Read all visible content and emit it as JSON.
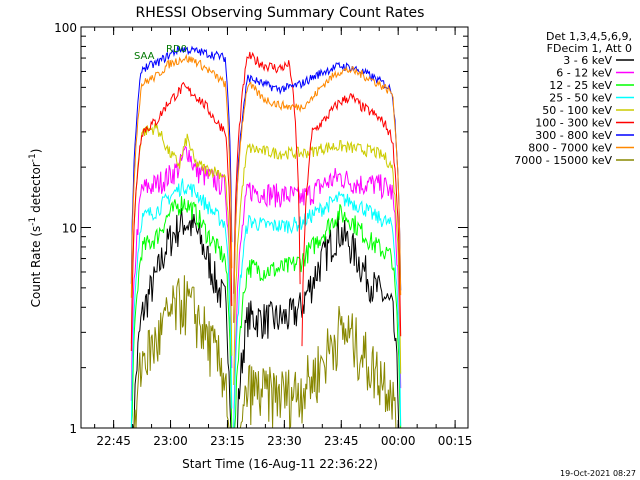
{
  "chart_data": {
    "type": "line",
    "title": "RHESSI Observing Summary Count Rates",
    "xlabel": "Start Time (16-Aug-11 22:36:22)",
    "ylabel_prefix": "Count Rate (s",
    "ylabel_sup": "-1",
    "ylabel_mid": " detector",
    "ylabel_suffix": ")",
    "footer": "19-Oct-2021 08:27",
    "y_scale": "log",
    "ylim": [
      1,
      100
    ],
    "y_ticks": [
      {
        "value": 1,
        "label": "1"
      },
      {
        "value": 10,
        "label": "10"
      },
      {
        "value": 100,
        "label": "100"
      }
    ],
    "x_units": "minutes after 22:36:22",
    "xlim": [
      0,
      102
    ],
    "x_ticks": [
      {
        "value": 8.6,
        "label": "22:45"
      },
      {
        "value": 23.6,
        "label": "23:00"
      },
      {
        "value": 38.6,
        "label": "23:15"
      },
      {
        "value": 53.6,
        "label": "23:30"
      },
      {
        "value": 68.6,
        "label": "23:45"
      },
      {
        "value": 83.6,
        "label": "00:00"
      },
      {
        "value": 98.6,
        "label": "00:15"
      }
    ],
    "legend_header": [
      "Det 1,3,4,5,6,9,",
      "FDecim 1, Att 0"
    ],
    "legend_placement": "right",
    "annotations": [
      {
        "text": "RD0",
        "color": "#007700"
      },
      {
        "text": "SAA",
        "color": "#007700"
      }
    ],
    "series": [
      {
        "name": "3 - 6 keV",
        "color": "#000000",
        "x": [
          13,
          16,
          20,
          23,
          27,
          30,
          33,
          36,
          38,
          40,
          44,
          48,
          52,
          55,
          58,
          61,
          64,
          68,
          71,
          74,
          77,
          80,
          82,
          84.5
        ],
        "y": [
          0,
          3.6,
          5.8,
          8.5,
          10.8,
          10,
          7.3,
          5,
          4.3,
          0,
          3.6,
          3.5,
          3.5,
          3.6,
          4,
          5.4,
          7.2,
          9.7,
          8.2,
          6.4,
          5.1,
          4.5,
          3.9,
          0
        ]
      },
      {
        "name": "6 - 12 keV",
        "color": "#ff00ff",
        "x": [
          13,
          16,
          20,
          23,
          26,
          28,
          30,
          33,
          36,
          38,
          40,
          44,
          48,
          52,
          55,
          58,
          61,
          64,
          68,
          71,
          74,
          77,
          80,
          82,
          84.5
        ],
        "y": [
          0,
          15.5,
          16.5,
          18,
          20,
          25,
          19.5,
          18,
          17,
          16,
          0,
          15.5,
          15,
          14.5,
          14.5,
          14,
          15,
          16.5,
          18,
          17,
          16.5,
          16.5,
          16,
          15,
          0
        ]
      },
      {
        "name": "12 - 25 keV",
        "color": "#00ff00",
        "x": [
          13,
          16,
          20,
          23,
          27,
          30,
          33,
          36,
          38,
          40,
          44,
          48,
          52,
          55,
          58,
          61,
          64,
          68,
          71,
          74,
          77,
          80,
          82,
          84.5
        ],
        "y": [
          0,
          7.8,
          9,
          11.5,
          13.5,
          12,
          9.5,
          7.8,
          7,
          0,
          6.4,
          6.1,
          6.2,
          6.4,
          6.8,
          8,
          9.5,
          11.8,
          11,
          9.5,
          8.3,
          7.6,
          7.1,
          0
        ]
      },
      {
        "name": "25 - 50 keV",
        "color": "#00ffff",
        "x": [
          13,
          16,
          20,
          23,
          27,
          30,
          33,
          36,
          38,
          40,
          44,
          48,
          52,
          55,
          58,
          61,
          64,
          68,
          71,
          74,
          77,
          80,
          82,
          84.5
        ],
        "y": [
          0,
          11.2,
          12.2,
          14,
          16.3,
          15.2,
          13,
          11.3,
          10.5,
          0,
          10.8,
          10.3,
          10.2,
          10.3,
          10.5,
          11.6,
          12.6,
          14,
          13.5,
          12.7,
          11.5,
          10.8,
          10.2,
          0
        ]
      },
      {
        "name": "50 - 100 keV",
        "color": "#cccc00",
        "x": [
          13,
          16,
          20,
          23,
          26,
          28,
          30,
          33,
          36,
          38,
          40,
          44,
          48,
          52,
          55,
          58,
          61,
          64,
          68,
          71,
          74,
          77,
          80,
          82,
          84.5
        ],
        "y": [
          0,
          30,
          31.5,
          24,
          20.5,
          28,
          21,
          19.5,
          19,
          18,
          0,
          25,
          24,
          23.5,
          23.5,
          23.5,
          24,
          25,
          25.5,
          25,
          24.5,
          24,
          22.5,
          20,
          0
        ]
      },
      {
        "name": "100 - 300 keV",
        "color": "#ff0000",
        "x": [
          13,
          16,
          20,
          23,
          27,
          30,
          33,
          36,
          38,
          40,
          44,
          48,
          52,
          55,
          58,
          61,
          64,
          68,
          71,
          74,
          77,
          80,
          82,
          84.5
        ],
        "y": [
          0,
          30,
          34,
          42,
          50,
          46,
          40,
          33,
          31,
          0,
          72,
          65,
          62,
          65,
          0,
          30,
          34,
          42,
          45,
          40,
          37,
          33,
          28,
          0
        ]
      },
      {
        "name": "300 - 800 keV",
        "color": "#0000ff",
        "x": [
          13,
          16,
          20,
          23,
          26,
          30,
          33,
          36,
          38,
          40,
          44,
          48,
          52,
          55,
          58,
          61,
          64,
          68,
          71,
          74,
          77,
          80,
          82,
          84.5
        ],
        "y": [
          0,
          62,
          66,
          72,
          78,
          76,
          74,
          72,
          70,
          0,
          56,
          52,
          49,
          50,
          52,
          56,
          60,
          64,
          63,
          60,
          56,
          52,
          48,
          0
        ]
      },
      {
        "name": "800 - 7000 keV",
        "color": "#ff8800",
        "x": [
          13,
          16,
          20,
          23,
          27,
          30,
          33,
          36,
          38,
          40,
          44,
          48,
          52,
          55,
          58,
          61,
          64,
          68,
          71,
          74,
          77,
          80,
          82,
          84.5
        ],
        "y": [
          0,
          52,
          57,
          65,
          70,
          68,
          62,
          56,
          52,
          0,
          52,
          44,
          41,
          40,
          40,
          44,
          52,
          60,
          61,
          58,
          54,
          50,
          47,
          0
        ]
      },
      {
        "name": "7000 - 15000 keV",
        "color": "#888800",
        "x": [
          13,
          16,
          20,
          23,
          27,
          30,
          33,
          36,
          38,
          40,
          44,
          48,
          52,
          55,
          58,
          61,
          64,
          68,
          71,
          74,
          77,
          80,
          82,
          84.5
        ],
        "y": [
          0,
          2.2,
          2.7,
          3.6,
          4.4,
          3.8,
          2.9,
          2.2,
          1.9,
          0,
          1.6,
          1.5,
          1.5,
          1.5,
          1.6,
          1.8,
          2.2,
          3.1,
          2.9,
          2.4,
          2,
          1.8,
          1.6,
          0
        ]
      }
    ]
  }
}
